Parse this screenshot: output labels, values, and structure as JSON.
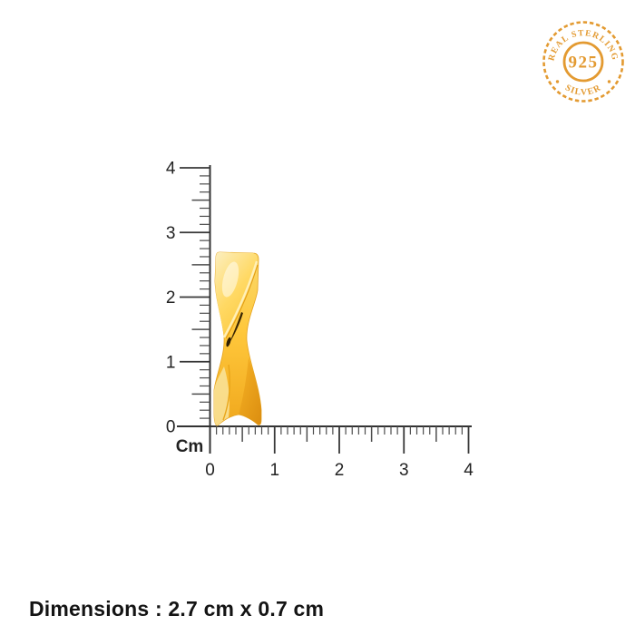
{
  "badge": {
    "top_text": "REAL STERLING",
    "center_text": "925",
    "bottom_text": "SILVER",
    "color": "#E39A31"
  },
  "ruler": {
    "unit_label": "Cm",
    "vertical_labels": [
      "0",
      "1",
      "2",
      "3",
      "4"
    ],
    "horizontal_labels": [
      "0",
      "1",
      "2",
      "3",
      "4"
    ],
    "range_cm": [
      0,
      4
    ]
  },
  "product": {
    "description": "gold twisted ribbon earring",
    "colors": {
      "light_gold": "#FCEFC0",
      "gold": "#FFC83C",
      "amber": "#EFA71D",
      "deep_fold": "#D98A0E",
      "dark_crease": "#3A2603"
    }
  },
  "measurements": {
    "height_cm": 2.7,
    "width_cm": 0.7,
    "unit": "cm"
  },
  "footer": {
    "dimensions_label": "Dimensions : 2.7 cm x 0.7 cm"
  }
}
